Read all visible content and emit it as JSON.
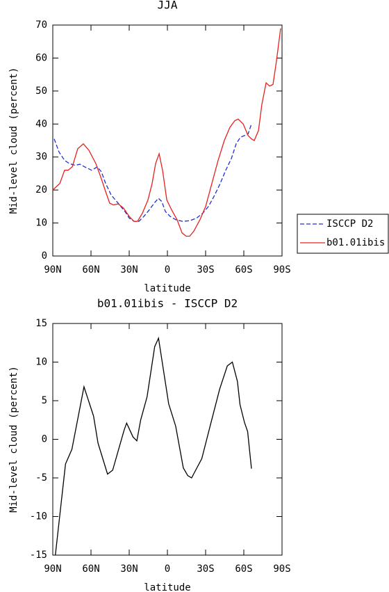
{
  "chart_data": [
    {
      "type": "line",
      "title": "JJA",
      "xlabel": "latitude",
      "ylabel": "Mid-level cloud (percent)",
      "xlim": [
        90,
        -90
      ],
      "ylim": [
        0,
        70
      ],
      "xticks": [
        {
          "value": 90,
          "label": "90N"
        },
        {
          "value": 60,
          "label": "60N"
        },
        {
          "value": 30,
          "label": "30N"
        },
        0,
        {
          "value": -30,
          "label": "30S"
        },
        {
          "value": -60,
          "label": "60S"
        },
        {
          "value": -90,
          "label": "90S"
        }
      ],
      "yticks": [
        0,
        10,
        20,
        30,
        40,
        50,
        60,
        70
      ],
      "legend": "right",
      "series": [
        {
          "name": "ISCCP D2",
          "color": "#1f2fd0",
          "linestyle": "dashed",
          "x": [
            88.9,
            85.1,
            80.7,
            76.9,
            72.5,
            68.7,
            64.9,
            59.5,
            55.1,
            51.8,
            48.5,
            44.2,
            38.7,
            33.3,
            30,
            26.2,
            22.4,
            18.5,
            14.2,
            10.4,
            7.1,
            4.4,
            1.6,
            -2.2,
            -6.5,
            -12,
            -17.5,
            -22.9,
            -27.8,
            -32.2,
            -36.5,
            -40.9,
            -45.8,
            -50.2,
            -54,
            -57.3,
            -60.5,
            -63.3,
            -66
          ],
          "values": [
            35.5,
            31.5,
            29,
            28,
            27.5,
            27.8,
            27,
            26,
            27,
            25.5,
            22,
            18.5,
            16,
            13.5,
            11.5,
            10.5,
            10.5,
            12,
            14,
            16,
            17.5,
            16.5,
            13.5,
            12,
            11,
            10.5,
            10.7,
            11.5,
            13,
            15,
            18,
            21.5,
            26,
            29.5,
            34,
            36,
            36.5,
            37,
            40
          ]
        },
        {
          "name": "b01.01ibis",
          "color": "#e8201c",
          "linestyle": "solid",
          "x": [
            90,
            84.5,
            80.7,
            78,
            74.7,
            70.4,
            66,
            61.6,
            56.2,
            52.4,
            48.5,
            45.3,
            42.5,
            38.7,
            34.4,
            30,
            26.2,
            23.5,
            19.6,
            15.3,
            12,
            9.3,
            6.5,
            3.8,
            0.5,
            -3.3,
            -7.6,
            -11.5,
            -14.7,
            -17.5,
            -20.7,
            -25.6,
            -30,
            -34.9,
            -39.8,
            -44.7,
            -49.1,
            -52.9,
            -55.6,
            -59.5,
            -63.3,
            -66,
            -68.2,
            -71.5,
            -74.2,
            -77.5,
            -80.2,
            -82.9,
            -85.6,
            -88.9
          ],
          "values": [
            20,
            22,
            26,
            26,
            27,
            32.5,
            34,
            32,
            28,
            24,
            19.5,
            16,
            15.5,
            15.8,
            14.5,
            12,
            10.5,
            10.5,
            13,
            17,
            22,
            28,
            31,
            26,
            17,
            14,
            11,
            7,
            6,
            6,
            7.5,
            11,
            15,
            22,
            29,
            35,
            39,
            41,
            41.5,
            40,
            36.5,
            35.5,
            35,
            38,
            46,
            52.5,
            51.5,
            52,
            59,
            69
          ]
        }
      ]
    },
    {
      "type": "line",
      "title": "b01.01ibis - ISCCP D2",
      "xlabel": "latitude",
      "ylabel": "Mid-level cloud (percent)",
      "xlim": [
        90,
        -90
      ],
      "ylim": [
        -15,
        15
      ],
      "xticks": [
        {
          "value": 90,
          "label": "90N"
        },
        {
          "value": 60,
          "label": "60N"
        },
        {
          "value": 30,
          "label": "30N"
        },
        0,
        {
          "value": -30,
          "label": "30S"
        },
        {
          "value": -60,
          "label": "60S"
        },
        {
          "value": -90,
          "label": "90S"
        }
      ],
      "yticks": [
        -15,
        -10,
        -5,
        0,
        5,
        10,
        15
      ],
      "series": [
        {
          "color": "#000000",
          "linestyle": "solid",
          "x": [
            88,
            80,
            75,
            65.5,
            58,
            54.5,
            47,
            43,
            34,
            32,
            27,
            24,
            21,
            16,
            10,
            7,
            -1,
            -6.5,
            -12.5,
            -16,
            -19,
            -27,
            -34,
            -41,
            -47,
            -51,
            -55,
            -57,
            -60.5,
            -63,
            -66
          ],
          "values": [
            -15,
            -3.2,
            -1.3,
            6.8,
            3,
            -0.5,
            -4.5,
            -4,
            1.2,
            2.1,
            0.3,
            -0.2,
            2.5,
            5.5,
            12,
            13.1,
            4.6,
            1.7,
            -3.7,
            -4.7,
            -5,
            -2.5,
            2,
            6.5,
            9.5,
            10,
            7.5,
            4.5,
            2.2,
            1,
            -3.8
          ]
        }
      ]
    }
  ]
}
